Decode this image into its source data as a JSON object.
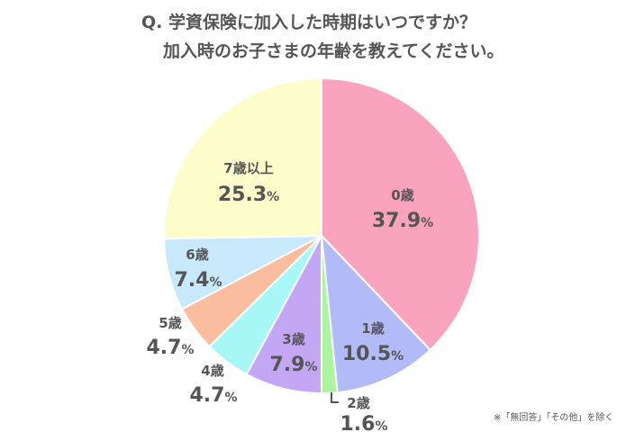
{
  "title": {
    "line1": "Q. 学資保険に加入した時期はいつですか？",
    "line2": "加入時のお子さまの年齢を教えてください。"
  },
  "note": "※「無回答」「その他」を除く",
  "chart_data": {
    "type": "pie",
    "start": "12 o'clock",
    "direction": "clockwise",
    "categories": [
      "0歳",
      "1歳",
      "2歳",
      "3歳",
      "4歳",
      "5歳",
      "6歳",
      "7歳以上"
    ],
    "values": [
      37.9,
      10.5,
      1.6,
      7.9,
      4.7,
      4.7,
      7.4,
      25.3
    ],
    "value_labels": [
      "37.9",
      "10.5",
      "1.6",
      "7.9",
      "4.7",
      "4.7",
      "7.4",
      "25.3"
    ],
    "unit": "%",
    "colors": [
      "#f9a3bf",
      "#b3baf8",
      "#aaf59d",
      "#c3a7f4",
      "#a8f7f7",
      "#fbbd9f",
      "#c7e9fb",
      "#fdfccb"
    ]
  }
}
